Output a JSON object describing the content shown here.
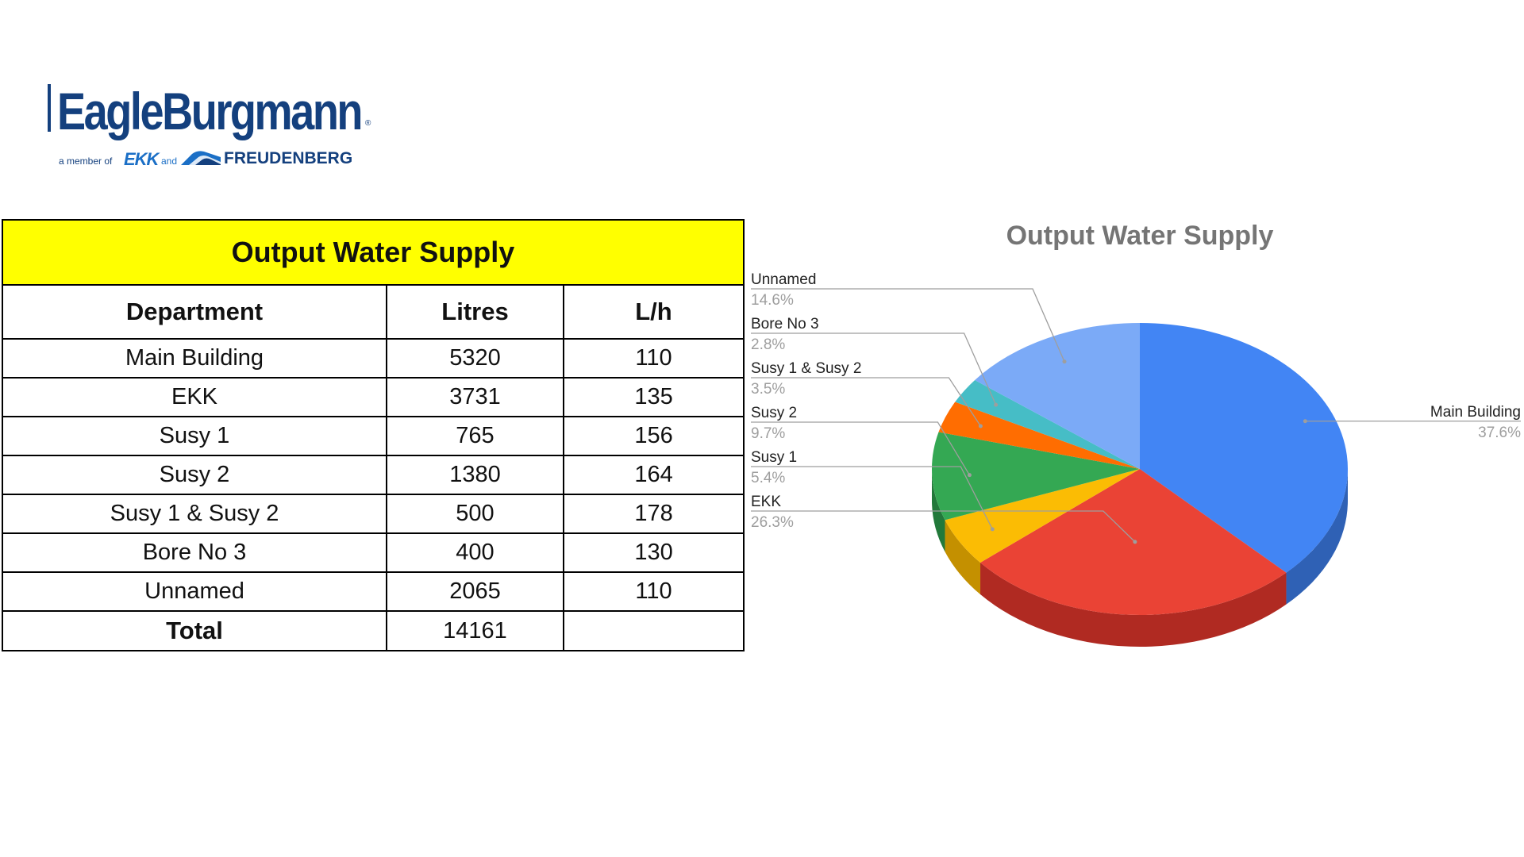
{
  "logo": {
    "brand": "EagleBurgmann",
    "registered_mark": "®",
    "member_text": "a member of",
    "ekk": "EKK",
    "and_text": "and",
    "freudenberg": "FREUDENBERG"
  },
  "table": {
    "title": "Output Water Supply",
    "headers": [
      "Department",
      "Litres",
      "L/h"
    ],
    "rows": [
      {
        "department": "Main Building",
        "litres": "5320",
        "lh": "110"
      },
      {
        "department": "EKK",
        "litres": "3731",
        "lh": "135"
      },
      {
        "department": "Susy 1",
        "litres": "765",
        "lh": "156"
      },
      {
        "department": "Susy 2",
        "litres": "1380",
        "lh": "164"
      },
      {
        "department": "Susy 1 & Susy 2",
        "litres": "500",
        "lh": "178"
      },
      {
        "department": "Bore No 3",
        "litres": "400",
        "lh": "130"
      },
      {
        "department": "Unnamed",
        "litres": "2065",
        "lh": "110"
      }
    ],
    "total_label": "Total",
    "total_litres": "14161",
    "total_lh": ""
  },
  "chart_data": {
    "type": "pie",
    "title": "Output Water Supply",
    "slices": [
      {
        "name": "Main Building",
        "value": 5320,
        "percent": "37.6%",
        "color": "#4285f4",
        "dark": "#2f61b5"
      },
      {
        "name": "EKK",
        "value": 3731,
        "percent": "26.3%",
        "color": "#ea4335",
        "dark": "#b02a22"
      },
      {
        "name": "Susy 1",
        "value": 765,
        "percent": "5.4%",
        "color": "#fbbc04",
        "dark": "#c49000"
      },
      {
        "name": "Susy 2",
        "value": 1380,
        "percent": "9.7%",
        "color": "#34a853",
        "dark": "#22793a"
      },
      {
        "name": "Susy 1 & Susy 2",
        "value": 500,
        "percent": "3.5%",
        "color": "#ff6d01",
        "dark": "#c45200"
      },
      {
        "name": "Bore No 3",
        "value": 400,
        "percent": "2.8%",
        "color": "#46bdc6",
        "dark": "#2f8f96"
      },
      {
        "name": "Unnamed",
        "value": 2065,
        "percent": "14.6%",
        "color": "#7baaf7",
        "dark": "#5a84c9"
      }
    ],
    "legend": "labels-with-leader-lines",
    "three_d": true
  }
}
